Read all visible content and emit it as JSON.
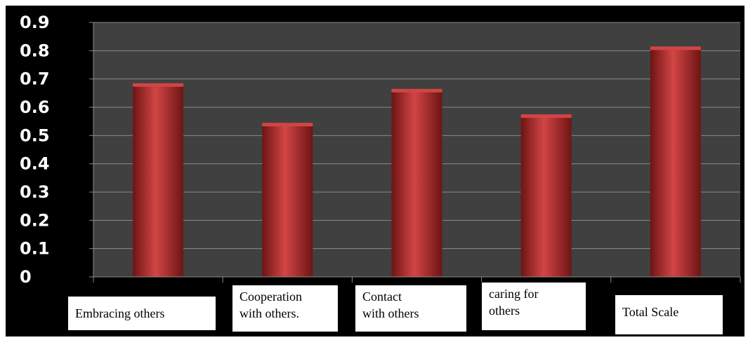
{
  "chart_data": {
    "type": "bar",
    "title": "",
    "xlabel": "",
    "ylabel": "",
    "categories": [
      "Embracing others",
      "Cooperation\nwith others.",
      "Contact\nwith others",
      "caring for\nothers",
      "Total Scale"
    ],
    "values": [
      0.68,
      0.54,
      0.66,
      0.57,
      0.81
    ],
    "ylim": [
      0,
      0.9
    ],
    "yticks": [
      "0",
      "0.1",
      "0.2",
      "0.3",
      "0.4",
      "0.5",
      "0.6",
      "0.7",
      "0.8",
      "0.9"
    ],
    "grid": true,
    "legend": "none"
  },
  "colors": {
    "frame": "#000000",
    "plot_area": "#404040",
    "grid": "#8a8a8a",
    "bar": "#b02828",
    "bar_highlight": "#d24545",
    "bar_shadow": "#6e1414",
    "tick_label": "#ffffff",
    "category_box_bg": "#ffffff",
    "category_box_text": "#000000"
  }
}
